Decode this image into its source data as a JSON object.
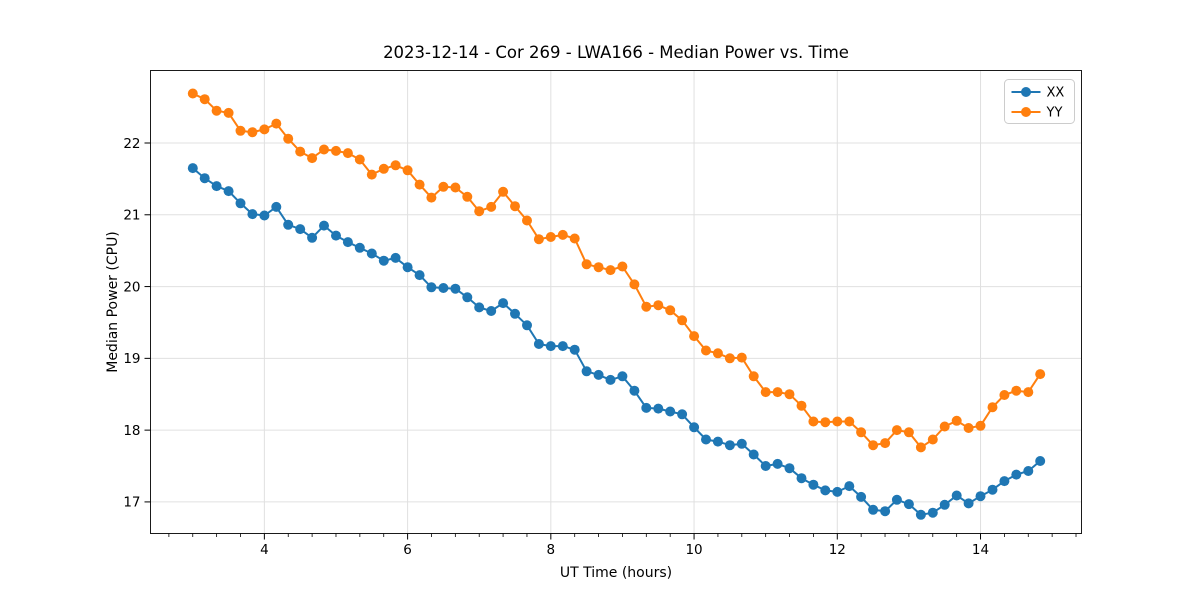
{
  "chart_data": {
    "type": "line",
    "title": "2023-12-14 - Cor 269 - LWA166 - Median Power vs. Time",
    "xlabel": "UT Time (hours)",
    "ylabel": "Median Power (CPU)",
    "x": [
      3.0,
      3.167,
      3.333,
      3.5,
      3.667,
      3.833,
      4.0,
      4.167,
      4.333,
      4.5,
      4.667,
      4.833,
      5.0,
      5.167,
      5.333,
      5.5,
      5.667,
      5.833,
      6.0,
      6.167,
      6.333,
      6.5,
      6.667,
      6.833,
      7.0,
      7.167,
      7.333,
      7.5,
      7.667,
      7.833,
      8.0,
      8.167,
      8.333,
      8.5,
      8.667,
      8.833,
      9.0,
      9.167,
      9.333,
      9.5,
      9.667,
      9.833,
      10.0,
      10.167,
      10.333,
      10.5,
      10.667,
      10.833,
      11.0,
      11.167,
      11.333,
      11.5,
      11.667,
      11.833,
      12.0,
      12.167,
      12.333,
      12.5,
      12.667,
      12.833,
      13.0,
      13.167,
      13.333,
      13.5,
      13.667,
      13.833,
      14.0,
      14.167,
      14.333,
      14.5,
      14.667,
      14.833
    ],
    "series": [
      {
        "name": "XX",
        "color": "#1f77b4",
        "marker": "circle",
        "values": [
          21.65,
          21.51,
          21.4,
          21.33,
          21.16,
          21.01,
          20.99,
          21.11,
          20.86,
          20.8,
          20.68,
          20.85,
          20.71,
          20.62,
          20.54,
          20.46,
          20.36,
          20.4,
          20.27,
          20.16,
          19.99,
          19.98,
          19.97,
          19.85,
          19.71,
          19.66,
          19.77,
          19.62,
          19.46,
          19.2,
          19.17,
          19.17,
          19.12,
          18.82,
          18.77,
          18.7,
          18.75,
          18.55,
          18.31,
          18.3,
          18.26,
          18.22,
          18.04,
          17.87,
          17.84,
          17.79,
          17.81,
          17.66,
          17.5,
          17.53,
          17.47,
          17.33,
          17.24,
          17.16,
          17.14,
          17.22,
          17.07,
          16.89,
          16.87,
          17.03,
          16.97,
          16.82,
          16.85,
          16.96,
          17.09,
          16.98,
          17.08,
          17.17,
          17.29,
          17.38,
          17.43,
          17.57
        ]
      },
      {
        "name": "YY",
        "color": "#ff7f0e",
        "marker": "circle",
        "values": [
          22.69,
          22.61,
          22.45,
          22.42,
          22.17,
          22.15,
          22.19,
          22.27,
          22.06,
          21.88,
          21.79,
          21.91,
          21.89,
          21.86,
          21.77,
          21.56,
          21.64,
          21.69,
          21.62,
          21.42,
          21.24,
          21.39,
          21.38,
          21.25,
          21.05,
          21.11,
          21.32,
          21.12,
          20.92,
          20.66,
          20.69,
          20.72,
          20.67,
          20.31,
          20.27,
          20.23,
          20.28,
          20.03,
          19.72,
          19.74,
          19.67,
          19.53,
          19.31,
          19.11,
          19.07,
          19.0,
          19.01,
          18.75,
          18.53,
          18.53,
          18.5,
          18.34,
          18.12,
          18.11,
          18.12,
          18.12,
          17.97,
          17.79,
          17.82,
          18.0,
          17.97,
          17.76,
          17.87,
          18.05,
          18.13,
          18.03,
          18.06,
          18.32,
          18.49,
          18.55,
          18.53,
          18.78
        ]
      }
    ],
    "xlim": [
      2.41,
      15.41
    ],
    "ylim": [
      16.56,
      23.01
    ],
    "xticks": [
      4,
      6,
      8,
      10,
      12,
      14
    ],
    "yticks": [
      17,
      18,
      19,
      20,
      21,
      22
    ],
    "x_minor_tick_step": 0.33333,
    "grid": true,
    "legend_position": "upper right",
    "legend_labels": [
      "XX",
      "YY"
    ]
  },
  "colors": {
    "background": "#ffffff",
    "grid": "#e0e0e0",
    "spine": "#1a1a1a",
    "tick": "#000000",
    "text": "#000000",
    "legend_border": "#cccccc",
    "series_xx": "#1f77b4",
    "series_yy": "#ff7f0e"
  }
}
